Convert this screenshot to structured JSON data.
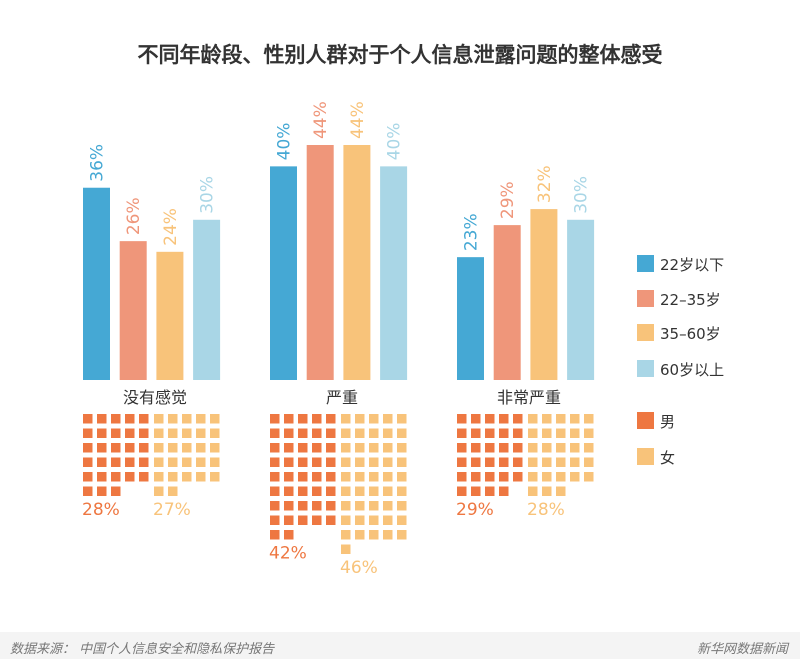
{
  "chart_data": {
    "type": "bar",
    "title": "不同年龄段、性别人群对于个人信息泄露问题的整体感受",
    "categories": [
      "没有感觉",
      "严重",
      "非常严重"
    ],
    "series": [
      {
        "name": "22岁以下",
        "color": "#45a8d4",
        "values": [
          36,
          40,
          23
        ]
      },
      {
        "name": "22–35岁",
        "color": "#ef967a",
        "values": [
          26,
          44,
          29
        ]
      },
      {
        "name": "35–60岁",
        "color": "#f8c37a",
        "values": [
          24,
          44,
          32
        ]
      },
      {
        "name": "60岁以上",
        "color": "#a9d6e6",
        "values": [
          30,
          40,
          30
        ]
      }
    ],
    "ylim": [
      0,
      44
    ],
    "gender_waffle": {
      "series": [
        {
          "name": "男",
          "color": "#ee7741",
          "values": [
            28,
            42,
            29
          ]
        },
        {
          "name": "女",
          "color": "#f8c37a",
          "values": [
            27,
            46,
            28
          ]
        }
      ],
      "unit": "%"
    }
  },
  "footer": {
    "source": "数据来源： 中国个人信息安全和隐私保护报告",
    "brand": "新华网数据新闻"
  }
}
